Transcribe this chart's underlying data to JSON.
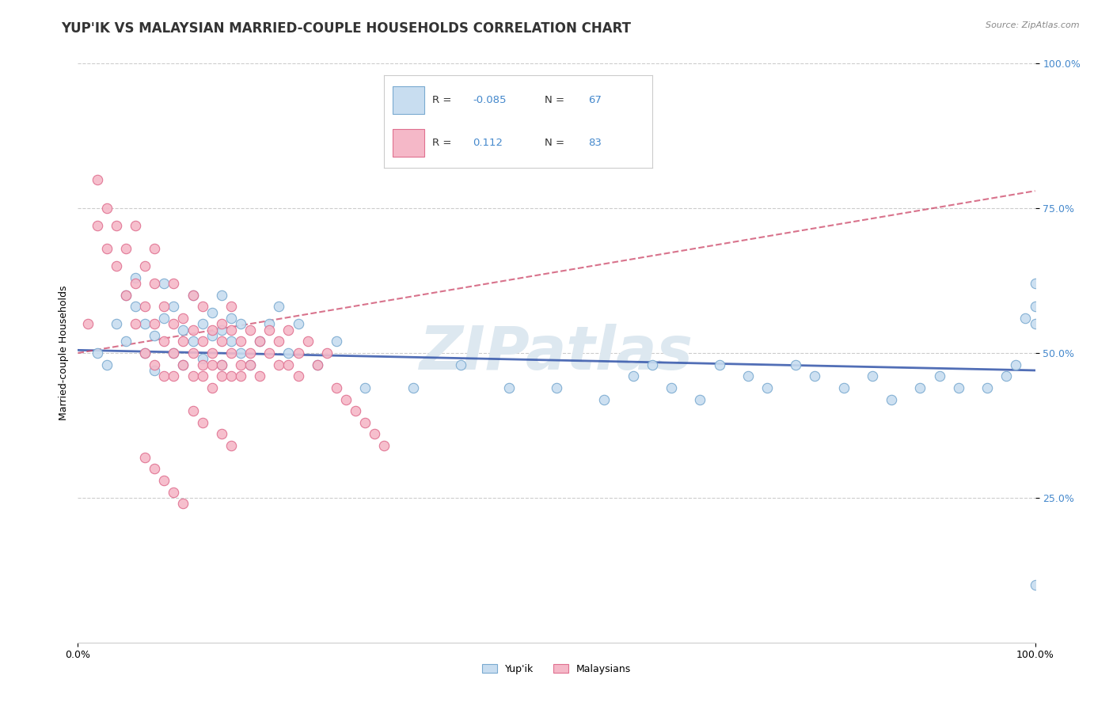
{
  "title": "YUP'IK VS MALAYSIAN MARRIED-COUPLE HOUSEHOLDS CORRELATION CHART",
  "source": "Source: ZipAtlas.com",
  "ylabel": "Married-couple Households",
  "r_blue": -0.085,
  "n_blue": 67,
  "r_pink": 0.112,
  "n_pink": 83,
  "background_color": "#ffffff",
  "grid_color": "#cccccc",
  "blue_dot_fill": "#c8ddf0",
  "blue_dot_edge": "#7aaad0",
  "pink_dot_fill": "#f5b8c8",
  "pink_dot_edge": "#e07090",
  "blue_line_color": "#3355aa",
  "pink_line_color": "#cc4466",
  "watermark_color": "#dde8f0",
  "title_fontsize": 12,
  "tick_fontsize": 9,
  "blue_scatter_x": [
    0.02,
    0.03,
    0.04,
    0.05,
    0.05,
    0.06,
    0.06,
    0.07,
    0.07,
    0.08,
    0.08,
    0.09,
    0.09,
    0.1,
    0.1,
    0.11,
    0.11,
    0.12,
    0.12,
    0.13,
    0.13,
    0.14,
    0.14,
    0.15,
    0.15,
    0.15,
    0.16,
    0.16,
    0.17,
    0.17,
    0.18,
    0.19,
    0.2,
    0.21,
    0.22,
    0.23,
    0.25,
    0.27,
    0.3,
    0.35,
    0.4,
    0.45,
    0.5,
    0.55,
    0.58,
    0.6,
    0.62,
    0.65,
    0.67,
    0.7,
    0.72,
    0.75,
    0.77,
    0.8,
    0.83,
    0.85,
    0.88,
    0.9,
    0.92,
    0.95,
    0.97,
    0.98,
    0.99,
    1.0,
    1.0,
    1.0,
    1.0
  ],
  "blue_scatter_y": [
    0.5,
    0.48,
    0.55,
    0.52,
    0.6,
    0.58,
    0.63,
    0.55,
    0.5,
    0.53,
    0.47,
    0.56,
    0.62,
    0.5,
    0.58,
    0.54,
    0.48,
    0.6,
    0.52,
    0.55,
    0.49,
    0.57,
    0.53,
    0.48,
    0.54,
    0.6,
    0.52,
    0.56,
    0.5,
    0.55,
    0.48,
    0.52,
    0.55,
    0.58,
    0.5,
    0.55,
    0.48,
    0.52,
    0.44,
    0.44,
    0.48,
    0.44,
    0.44,
    0.42,
    0.46,
    0.48,
    0.44,
    0.42,
    0.48,
    0.46,
    0.44,
    0.48,
    0.46,
    0.44,
    0.46,
    0.42,
    0.44,
    0.46,
    0.44,
    0.44,
    0.46,
    0.48,
    0.56,
    0.62,
    0.58,
    0.55,
    0.1
  ],
  "pink_scatter_x": [
    0.01,
    0.02,
    0.02,
    0.03,
    0.03,
    0.04,
    0.04,
    0.05,
    0.05,
    0.06,
    0.06,
    0.06,
    0.07,
    0.07,
    0.07,
    0.08,
    0.08,
    0.08,
    0.08,
    0.09,
    0.09,
    0.09,
    0.1,
    0.1,
    0.1,
    0.1,
    0.11,
    0.11,
    0.11,
    0.12,
    0.12,
    0.12,
    0.12,
    0.13,
    0.13,
    0.13,
    0.13,
    0.14,
    0.14,
    0.14,
    0.15,
    0.15,
    0.15,
    0.15,
    0.16,
    0.16,
    0.16,
    0.16,
    0.17,
    0.17,
    0.17,
    0.18,
    0.18,
    0.18,
    0.19,
    0.19,
    0.2,
    0.2,
    0.21,
    0.21,
    0.22,
    0.22,
    0.23,
    0.23,
    0.24,
    0.25,
    0.26,
    0.27,
    0.28,
    0.29,
    0.3,
    0.31,
    0.32,
    0.12,
    0.13,
    0.14,
    0.07,
    0.08,
    0.09,
    0.1,
    0.11,
    0.15,
    0.16
  ],
  "pink_scatter_y": [
    0.55,
    0.72,
    0.8,
    0.68,
    0.75,
    0.65,
    0.72,
    0.6,
    0.68,
    0.62,
    0.55,
    0.72,
    0.58,
    0.5,
    0.65,
    0.55,
    0.48,
    0.62,
    0.68,
    0.52,
    0.46,
    0.58,
    0.5,
    0.46,
    0.55,
    0.62,
    0.52,
    0.48,
    0.56,
    0.5,
    0.46,
    0.54,
    0.6,
    0.48,
    0.52,
    0.46,
    0.58,
    0.48,
    0.54,
    0.5,
    0.46,
    0.52,
    0.55,
    0.48,
    0.5,
    0.46,
    0.54,
    0.58,
    0.48,
    0.52,
    0.46,
    0.5,
    0.54,
    0.48,
    0.52,
    0.46,
    0.5,
    0.54,
    0.48,
    0.52,
    0.48,
    0.54,
    0.5,
    0.46,
    0.52,
    0.48,
    0.5,
    0.44,
    0.42,
    0.4,
    0.38,
    0.36,
    0.34,
    0.4,
    0.38,
    0.44,
    0.32,
    0.3,
    0.28,
    0.26,
    0.24,
    0.36,
    0.34
  ]
}
